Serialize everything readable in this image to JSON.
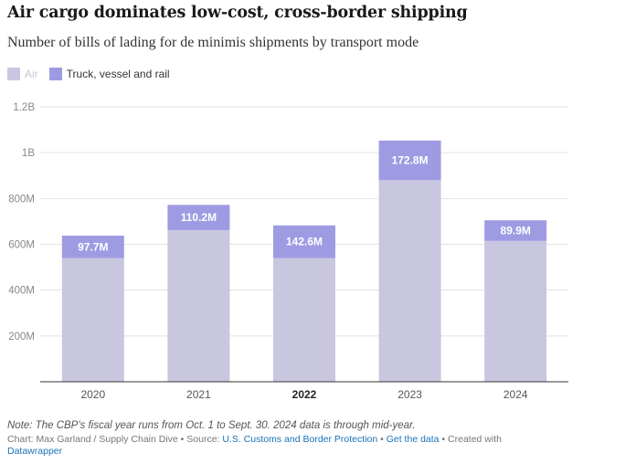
{
  "header": {
    "title": "Air cargo dominates low-cost, cross-border shipping",
    "subtitle": "Number of bills of lading for de minimis shipments by transport mode"
  },
  "legend": {
    "items": [
      {
        "label": "Air",
        "color": "#c9c7df"
      },
      {
        "label": "Truck, vessel and rail",
        "color": "#9f9be3"
      }
    ]
  },
  "chart_data": {
    "type": "bar",
    "stacked": true,
    "categories": [
      "2020",
      "2021",
      "2022",
      "2023",
      "2024"
    ],
    "highlighted_category": "2022",
    "series": [
      {
        "name": "Air",
        "values": [
          540000000,
          662000000,
          540000000,
          880000000,
          615000000
        ],
        "color": "#c9c7df"
      },
      {
        "name": "Truck, vessel and rail",
        "values": [
          97700000,
          110200000,
          142600000,
          172800000,
          89900000
        ],
        "color": "#9f9be3"
      }
    ],
    "data_labels": [
      "97.7M",
      "110.2M",
      "142.6M",
      "172.8M",
      "89.9M"
    ],
    "y_ticks": [
      {
        "value": 200000000,
        "label": "200M"
      },
      {
        "value": 400000000,
        "label": "400M"
      },
      {
        "value": 600000000,
        "label": "600M"
      },
      {
        "value": 800000000,
        "label": "800M"
      },
      {
        "value": 1000000000,
        "label": "1B"
      },
      {
        "value": 1200000000,
        "label": "1.2B"
      }
    ],
    "ylim": [
      0,
      1200000000
    ],
    "grid": true
  },
  "footer": {
    "note": "Note: The CBP's fiscal year runs from Oct. 1 to Sept. 30. 2024 data is through mid-year.",
    "credit_prefix": "Chart: Max Garland / Supply Chain Dive • Source: ",
    "source_link": "U.S. Customs and Border Protection",
    "sep": " • ",
    "get_data": "Get the data",
    "created_with": " • Created with",
    "datawrapper": "Datawrapper"
  }
}
